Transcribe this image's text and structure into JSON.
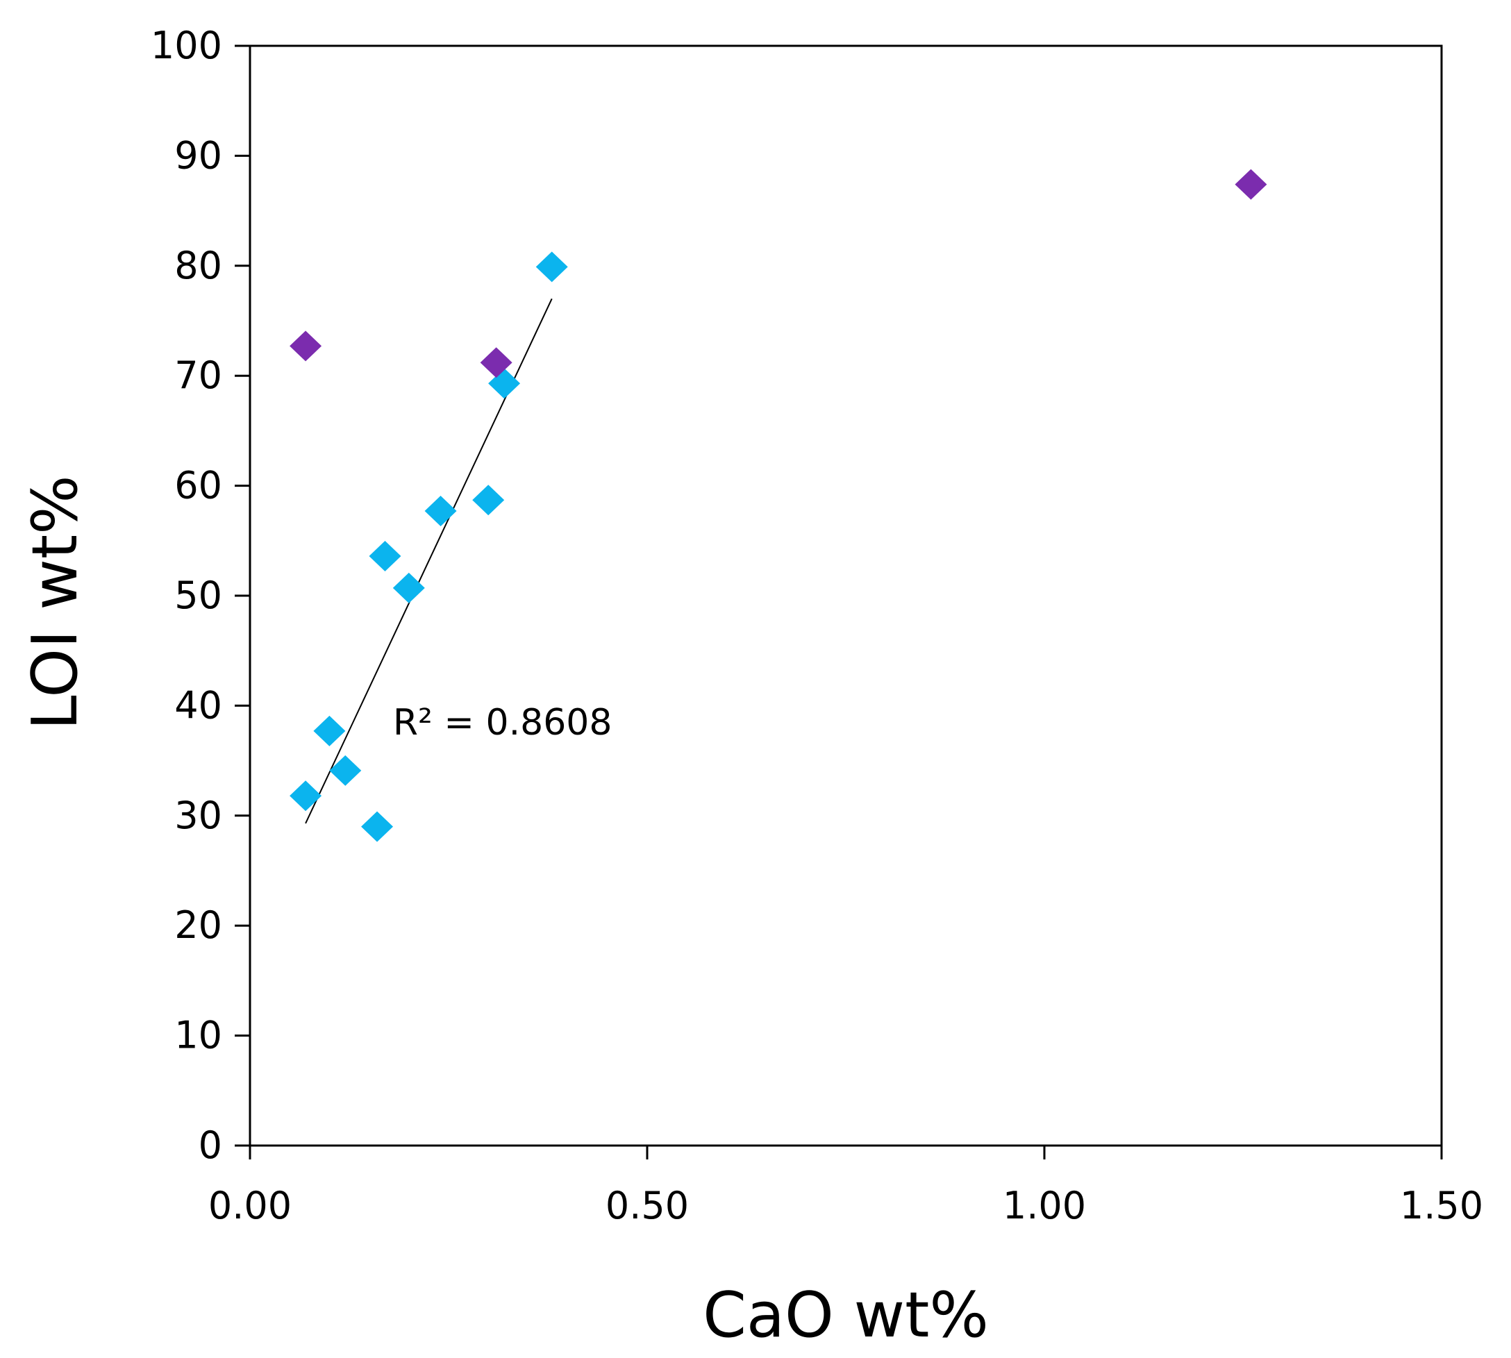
{
  "chart_data": {
    "type": "scatter",
    "title": "",
    "xlabel": "CaO wt%",
    "ylabel": "LOI wt%",
    "xlim": [
      0,
      1.5
    ],
    "ylim": [
      0,
      100
    ],
    "xticks": [
      0,
      0.5,
      1.0,
      1.5
    ],
    "xtick_labels": [
      "0.00",
      "0.50",
      "1.00",
      "1.50"
    ],
    "yticks": [
      0,
      10,
      20,
      30,
      40,
      50,
      60,
      70,
      80,
      90,
      100
    ],
    "ytick_labels": [
      "0",
      "10",
      "20",
      "30",
      "40",
      "50",
      "60",
      "70",
      "80",
      "90",
      "100"
    ],
    "grid": false,
    "series": [
      {
        "name": "cyan",
        "color": "#0BB4EE",
        "marker": "diamond",
        "points": [
          {
            "x": 0.07,
            "y": 31.8
          },
          {
            "x": 0.1,
            "y": 37.7
          },
          {
            "x": 0.12,
            "y": 34.1
          },
          {
            "x": 0.16,
            "y": 29.0
          },
          {
            "x": 0.17,
            "y": 53.6
          },
          {
            "x": 0.2,
            "y": 50.7
          },
          {
            "x": 0.24,
            "y": 57.7
          },
          {
            "x": 0.3,
            "y": 58.7
          },
          {
            "x": 0.32,
            "y": 69.3
          },
          {
            "x": 0.38,
            "y": 79.9
          }
        ]
      },
      {
        "name": "purple",
        "color": "#7B2CAE",
        "marker": "diamond",
        "points": [
          {
            "x": 0.07,
            "y": 72.7
          },
          {
            "x": 0.31,
            "y": 71.2
          },
          {
            "x": 1.26,
            "y": 87.4
          }
        ]
      }
    ],
    "trendline": {
      "series": "cyan",
      "x_start": 0.07,
      "y_start": 29.3,
      "x_end": 0.38,
      "y_end": 77.0,
      "label": "R² = 0.8608",
      "label_x": 0.18,
      "label_y": 38.5
    }
  }
}
